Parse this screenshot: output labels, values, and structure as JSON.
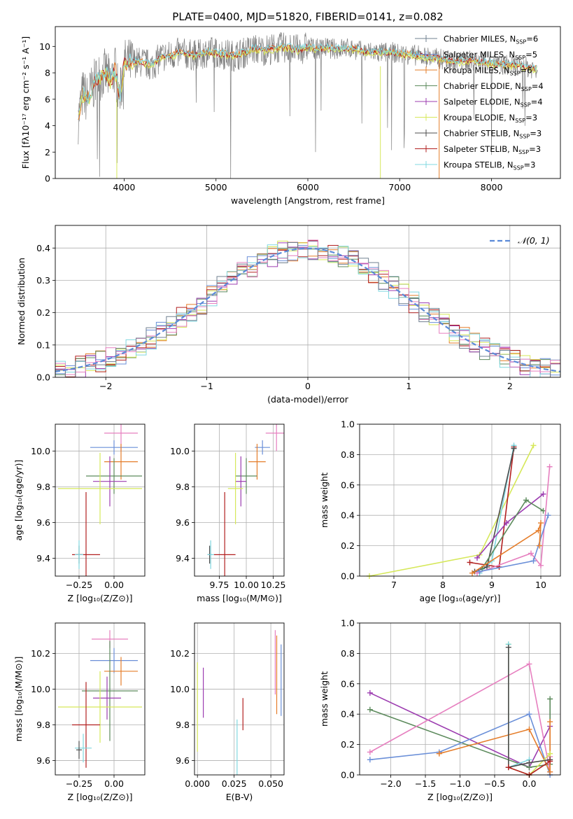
{
  "figure_title": "PLATE=0400, MJD=51820, FIBERID=0141, z=0.082",
  "colors": {
    "Chabrier MILES": "#708090",
    "Salpeter MILES": "#6a8fd8",
    "Kroupa MILES": "#e57d2a",
    "Chabrier ELODIE": "#5c8a5c",
    "Salpeter ELODIE": "#9c3cb0",
    "Kroupa ELODIE": "#d6e85a",
    "Chabrier STELIB": "#4d4d4d",
    "Salpeter STELIB": "#b22020",
    "Kroupa STELIB": "#80d8e0",
    "normal_curve": "#5b8ad8",
    "pink": "#e67fbf",
    "grid": "#b0b0b0"
  },
  "chart_data": [
    {
      "id": "spectrum",
      "type": "line",
      "title": "PLATE=0400, MJD=51820, FIBERID=0141, z=0.082",
      "xlabel": "wavelength [Angstrom, rest frame]",
      "ylabel": "Flux [fλ10⁻¹⁷ erg cm⁻² s⁻¹ A⁻¹]",
      "xlim": [
        3250,
        8750
      ],
      "ylim": [
        0,
        11.5
      ],
      "xticks": [
        4000,
        5000,
        6000,
        7000,
        8000
      ],
      "yticks": [
        0,
        2,
        4,
        6,
        8,
        10
      ],
      "grid": false,
      "legend_position": "right",
      "legend": [
        {
          "name": "Chabrier MILES",
          "nssp": "6"
        },
        {
          "name": "Salpeter MILES",
          "nssp": "5"
        },
        {
          "name": "Kroupa MILES",
          "nssp": "6"
        },
        {
          "name": "Chabrier ELODIE",
          "nssp": "4"
        },
        {
          "name": "Salpeter ELODIE",
          "nssp": "4"
        },
        {
          "name": "Kroupa ELODIE",
          "nssp": "3"
        },
        {
          "name": "Chabrier STELIB",
          "nssp": "3"
        },
        {
          "name": "Salpeter STELIB",
          "nssp": "3"
        },
        {
          "name": "Kroupa STELIB",
          "nssp": "3"
        }
      ],
      "data_curve": {
        "x": [
          3500,
          3550,
          3600,
          3650,
          3700,
          3750,
          3800,
          3850,
          3900,
          3950,
          4000,
          4100,
          4200,
          4300,
          4400,
          4500,
          4600,
          4700,
          4800,
          4900,
          5000,
          5100,
          5200,
          5300,
          5400,
          5500,
          5600,
          5700,
          5800,
          5900,
          6000,
          6100,
          6200,
          6300,
          6400,
          6500,
          6600,
          6700,
          6800,
          6900,
          7000,
          7100,
          7200,
          7300,
          7400,
          7500,
          7600,
          7700,
          7800,
          7900,
          8000,
          8100,
          8200,
          8300,
          8400,
          8500
        ],
        "y": [
          4.5,
          6.5,
          6.0,
          6.8,
          7.5,
          7.8,
          8.0,
          7.3,
          8.3,
          6.0,
          8.7,
          8.8,
          8.8,
          8.5,
          9.2,
          9.3,
          9.5,
          9.4,
          9.3,
          9.6,
          9.5,
          9.4,
          9.3,
          9.5,
          9.8,
          9.7,
          9.8,
          9.9,
          9.9,
          9.7,
          10.0,
          9.8,
          9.9,
          9.8,
          9.9,
          9.8,
          9.6,
          9.6,
          9.5,
          9.6,
          9.4,
          9.4,
          9.3,
          9.2,
          9.1,
          9.0,
          8.8,
          8.9,
          8.9,
          8.8,
          8.7,
          8.6,
          8.6,
          8.5,
          8.4,
          8.3
        ]
      }
    },
    {
      "id": "residual_histogram",
      "type": "histogram",
      "xlabel": "(data-model)/error",
      "ylabel": "Normed distribution",
      "xlim": [
        -2.5,
        2.5
      ],
      "ylim": [
        0,
        0.47
      ],
      "xticks": [
        -2,
        -1,
        0,
        1,
        2
      ],
      "yticks": [
        0.0,
        0.1,
        0.2,
        0.3,
        0.4
      ],
      "grid": true,
      "legend_position": "upper right",
      "legend": [
        "𝒩(0, 1)"
      ],
      "bin_width": 0.1,
      "overlay": {
        "type": "normal",
        "mean": 0,
        "sigma": 1
      }
    },
    {
      "id": "age_vs_Z",
      "type": "errorbar",
      "xlabel": "Z [log₁₀(Z/Z⊙)]",
      "ylabel": "age  [log₁₀(age/yr)]",
      "xlim": [
        -0.42,
        0.22
      ],
      "ylim": [
        9.3,
        10.15
      ],
      "xticks": [
        -0.25,
        0.0
      ],
      "xticklabels": [
        "−0.25",
        "0.00"
      ],
      "yticks": [
        9.4,
        9.6,
        9.8,
        10.0
      ],
      "yticklabels": [
        "9.4",
        "9.6",
        "9.8",
        "10.0"
      ],
      "grid": true,
      "points": [
        {
          "series": "pink",
          "x": 0.05,
          "xerr": 0.12,
          "y": 10.1,
          "yerr": 0.1
        },
        {
          "series": "Salpeter MILES",
          "x": 0.0,
          "xerr": 0.17,
          "y": 10.02,
          "yerr": 0.04
        },
        {
          "series": "Kroupa MILES",
          "x": 0.05,
          "xerr": 0.12,
          "y": 9.94,
          "yerr": 0.1
        },
        {
          "series": "Chabrier ELODIE",
          "x": 0.0,
          "xerr": 0.2,
          "y": 9.86,
          "yerr": 0.1
        },
        {
          "series": "Salpeter ELODIE",
          "x": -0.03,
          "xerr": 0.12,
          "y": 9.83,
          "yerr": 0.14
        },
        {
          "series": "Kroupa ELODIE",
          "x": -0.1,
          "xerr": 0.3,
          "y": 9.79,
          "yerr": 0.2
        },
        {
          "series": "Chabrier STELIB",
          "x": -0.25,
          "xerr": 0.02,
          "y": 9.42,
          "yerr": 0.05
        },
        {
          "series": "Salpeter STELIB",
          "x": -0.2,
          "xerr": 0.1,
          "y": 9.42,
          "yerr": 0.35
        },
        {
          "series": "Kroupa STELIB",
          "x": -0.25,
          "xerr": 0.03,
          "y": 9.42,
          "yerr": 0.08
        }
      ]
    },
    {
      "id": "age_vs_mass",
      "type": "errorbar",
      "xlabel": "mass [log₁₀(M/M⊙)]",
      "ylabel": "",
      "xlim": [
        9.52,
        10.35
      ],
      "ylim": [
        9.3,
        10.15
      ],
      "xticks": [
        9.75,
        10.0,
        10.25
      ],
      "xticklabels": [
        "9.75",
        "10.00",
        "10.25"
      ],
      "yticks": [
        9.4,
        9.6,
        9.8,
        10.0
      ],
      "yticklabels": [
        "9.4",
        "9.6",
        "9.8",
        "10.0"
      ],
      "grid": true,
      "points": [
        {
          "series": "pink",
          "x": 10.28,
          "xerr": 0.1,
          "y": 10.1,
          "yerr": 0.1
        },
        {
          "series": "Salpeter MILES",
          "x": 10.15,
          "xerr": 0.07,
          "y": 10.02,
          "yerr": 0.04
        },
        {
          "series": "Kroupa MILES",
          "x": 10.1,
          "xerr": 0.08,
          "y": 9.94,
          "yerr": 0.1
        },
        {
          "series": "Chabrier ELODIE",
          "x": 10.0,
          "xerr": 0.1,
          "y": 9.86,
          "yerr": 0.1
        },
        {
          "series": "Salpeter ELODIE",
          "x": 9.95,
          "xerr": 0.05,
          "y": 9.83,
          "yerr": 0.14
        },
        {
          "series": "Kroupa ELODIE",
          "x": 9.9,
          "xerr": 0.07,
          "y": 9.79,
          "yerr": 0.2
        },
        {
          "series": "Chabrier STELIB",
          "x": 9.66,
          "xerr": 0.02,
          "y": 9.42,
          "yerr": 0.05
        },
        {
          "series": "Salpeter STELIB",
          "x": 9.8,
          "xerr": 0.1,
          "y": 9.42,
          "yerr": 0.35
        },
        {
          "series": "Kroupa STELIB",
          "x": 9.67,
          "xerr": 0.03,
          "y": 9.42,
          "yerr": 0.08
        }
      ]
    },
    {
      "id": "massweight_vs_age",
      "type": "line",
      "xlabel": "age  [log₁₀(age/yr)]",
      "ylabel": "mass weight",
      "xlim": [
        6.3,
        10.4
      ],
      "ylim": [
        0,
        1.0
      ],
      "xticks": [
        7,
        8,
        9,
        10
      ],
      "yticks": [
        0.0,
        0.2,
        0.4,
        0.6,
        0.8,
        1.0
      ],
      "grid": true,
      "series": [
        {
          "name": "Kroupa ELODIE",
          "x": [
            6.5,
            8.75,
            9.85
          ],
          "y": [
            0.0,
            0.14,
            0.86
          ]
        },
        {
          "name": "Salpeter STELIB",
          "x": [
            8.55,
            9.15,
            9.45
          ],
          "y": [
            0.09,
            0.06,
            0.85
          ]
        },
        {
          "name": "Kroupa STELIB",
          "x": [
            8.75,
            9.0,
            9.45
          ],
          "y": [
            0.02,
            0.1,
            0.86
          ]
        },
        {
          "name": "Chabrier STELIB",
          "x": [
            8.65,
            8.9,
            9.45
          ],
          "y": [
            0.03,
            0.06,
            0.84
          ]
        },
        {
          "name": "Salpeter ELODIE",
          "x": [
            8.7,
            9.3,
            10.05
          ],
          "y": [
            0.12,
            0.35,
            0.54
          ]
        },
        {
          "name": "Chabrier ELODIE",
          "x": [
            8.8,
            9.7,
            10.05
          ],
          "y": [
            0.05,
            0.5,
            0.43
          ]
        },
        {
          "name": "pink",
          "x": [
            8.7,
            9.8,
            10.0,
            10.18
          ],
          "y": [
            0.02,
            0.15,
            0.07,
            0.72
          ]
        },
        {
          "name": "Salpeter MILES",
          "x": [
            8.75,
            9.85,
            10.15
          ],
          "y": [
            0.03,
            0.1,
            0.4
          ]
        },
        {
          "name": "Kroupa MILES",
          "x": [
            8.6,
            9.95,
            10.0,
            9.97
          ],
          "y": [
            0.02,
            0.3,
            0.35,
            0.2
          ]
        }
      ]
    },
    {
      "id": "mass_vs_Z",
      "type": "errorbar",
      "xlabel": "Z [log₁₀(Z/Z⊙)]",
      "ylabel": "mass [log₁₀(M/M⊙)]",
      "xlim": [
        -0.42,
        0.22
      ],
      "ylim": [
        9.52,
        10.37
      ],
      "xticks": [
        -0.25,
        0.0
      ],
      "xticklabels": [
        "−0.25",
        "0.00"
      ],
      "yticks": [
        9.6,
        9.8,
        10.0,
        10.2
      ],
      "yticklabels": [
        "9.6",
        "9.8",
        "10.0",
        "10.2"
      ],
      "grid": true,
      "points": [
        {
          "series": "pink",
          "x": -0.03,
          "xerr": 0.13,
          "y": 10.28,
          "yerr": 0.05
        },
        {
          "series": "Salpeter MILES",
          "x": 0.0,
          "xerr": 0.17,
          "y": 10.16,
          "yerr": 0.07
        },
        {
          "series": "Kroupa MILES",
          "x": 0.05,
          "xerr": 0.12,
          "y": 10.1,
          "yerr": 0.08
        },
        {
          "series": "Chabrier ELODIE",
          "x": -0.03,
          "xerr": 0.2,
          "y": 9.99,
          "yerr": 0.28
        },
        {
          "series": "Salpeter ELODIE",
          "x": -0.05,
          "xerr": 0.1,
          "y": 9.95,
          "yerr": 0.12
        },
        {
          "series": "Kroupa ELODIE",
          "x": -0.1,
          "xerr": 0.3,
          "y": 9.9,
          "yerr": 0.2
        },
        {
          "series": "Salpeter STELIB",
          "x": -0.2,
          "xerr": 0.1,
          "y": 9.8,
          "yerr": 0.24
        },
        {
          "series": "Kroupa STELIB",
          "x": -0.22,
          "xerr": 0.06,
          "y": 9.67,
          "yerr": 0.08
        },
        {
          "series": "Chabrier STELIB",
          "x": -0.25,
          "xerr": 0.02,
          "y": 9.66,
          "yerr": 0.05
        }
      ]
    },
    {
      "id": "mass_vs_EBV",
      "type": "errorbar",
      "xlabel": "E(B-V)",
      "ylabel": "",
      "xlim": [
        -0.002,
        0.059
      ],
      "ylim": [
        9.52,
        10.37
      ],
      "xticks": [
        0.0,
        0.025,
        0.05
      ],
      "xticklabels": [
        "0.000",
        "0.025",
        "0.050"
      ],
      "yticks": [
        9.6,
        9.8,
        10.0,
        10.2
      ],
      "yticklabels": [
        "9.6",
        "9.8",
        "10.0",
        "10.2"
      ],
      "grid": true,
      "points": [
        {
          "series": "Kroupa ELODIE",
          "x": 0.0,
          "xerr": 0,
          "y": 9.9,
          "yerr": 0.25
        },
        {
          "series": "Salpeter ELODIE",
          "x": 0.004,
          "xerr": 0,
          "y": 9.98,
          "yerr": 0.14
        },
        {
          "series": "Kroupa STELIB",
          "x": 0.027,
          "xerr": 0,
          "y": 9.67,
          "yerr": 0.16
        },
        {
          "series": "Salpeter STELIB",
          "x": 0.031,
          "xerr": 0,
          "y": 9.86,
          "yerr": 0.09
        },
        {
          "series": "pink",
          "x": 0.053,
          "xerr": 0,
          "y": 10.15,
          "yerr": 0.18
        },
        {
          "series": "Kroupa MILES",
          "x": 0.054,
          "xerr": 0,
          "y": 10.08,
          "yerr": 0.22
        },
        {
          "series": "Salpeter MILES",
          "x": 0.057,
          "xerr": 0,
          "y": 10.05,
          "yerr": 0.2
        }
      ]
    },
    {
      "id": "massweight_vs_Z",
      "type": "line",
      "xlabel": "Z [log₁₀(Z/Z⊙)]",
      "ylabel": "mass weight",
      "xlim": [
        -2.45,
        0.45
      ],
      "ylim": [
        0,
        1.0
      ],
      "xticks": [
        -2.0,
        -1.5,
        -1.0,
        -0.5,
        0.0
      ],
      "xticklabels": [
        "−2.0",
        "−1.5",
        "−1.0",
        "−0.5",
        "0.0"
      ],
      "yticks": [
        0.0,
        0.2,
        0.4,
        0.6,
        0.8,
        1.0
      ],
      "grid": true,
      "series": [
        {
          "name": "Salpeter ELODIE",
          "x": [
            -2.3,
            0.0,
            0.3
          ],
          "y": [
            0.54,
            0.05,
            0.32
          ]
        },
        {
          "name": "Chabrier ELODIE",
          "x": [
            -2.3,
            0.0,
            0.3,
            0.3
          ],
          "y": [
            0.43,
            0.05,
            0.07,
            0.5
          ]
        },
        {
          "name": "pink",
          "x": [
            -2.3,
            0.0,
            0.3,
            0.3
          ],
          "y": [
            0.15,
            0.73,
            0.02,
            0.12
          ]
        },
        {
          "name": "Salpeter MILES",
          "x": [
            -2.3,
            -1.3,
            0.0,
            0.3
          ],
          "y": [
            0.1,
            0.15,
            0.4,
            0.0
          ]
        },
        {
          "name": "Kroupa MILES",
          "x": [
            -1.3,
            0.0,
            0.3,
            0.3
          ],
          "y": [
            0.14,
            0.3,
            0.02,
            0.35
          ]
        },
        {
          "name": "Kroupa ELODIE",
          "x": [
            -0.3,
            -0.3,
            0.0,
            0.3
          ],
          "y": [
            0.86,
            0.05,
            0.0,
            0.14
          ]
        },
        {
          "name": "Kroupa STELIB",
          "x": [
            -0.3,
            -0.3,
            0.0
          ],
          "y": [
            0.86,
            0.05,
            0.1
          ]
        },
        {
          "name": "Chabrier STELIB",
          "x": [
            -0.3,
            -0.3,
            0.0,
            0.3
          ],
          "y": [
            0.84,
            0.05,
            0.08,
            0.1
          ]
        },
        {
          "name": "Salpeter STELIB",
          "x": [
            -0.3,
            0.0,
            0.3
          ],
          "y": [
            0.05,
            0.0,
            0.09
          ]
        }
      ]
    }
  ]
}
